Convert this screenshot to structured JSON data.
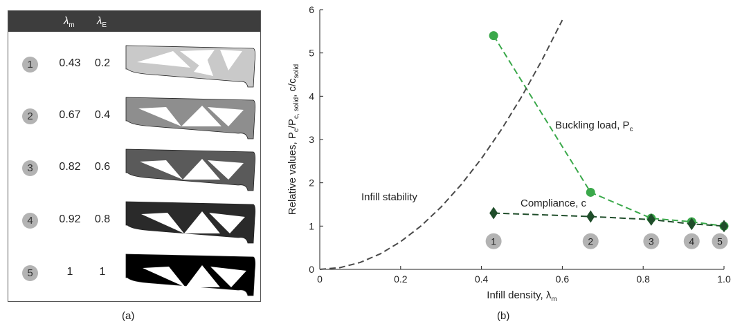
{
  "panel_a": {
    "header": {
      "lambda_m": "λ",
      "lambda_m_sub": "m",
      "lambda_e": "λ",
      "lambda_e_sub": "E"
    },
    "rows": [
      {
        "id": "1",
        "lambda_m": "0.43",
        "lambda_e": "0.2",
        "shade": "#c9c9c9"
      },
      {
        "id": "2",
        "lambda_m": "0.67",
        "lambda_e": "0.4",
        "shade": "#8e8e8e"
      },
      {
        "id": "3",
        "lambda_m": "0.82",
        "lambda_e": "0.6",
        "shade": "#5a5a5a"
      },
      {
        "id": "4",
        "lambda_m": "0.92",
        "lambda_e": "0.8",
        "shade": "#2a2a2a"
      },
      {
        "id": "5",
        "lambda_m": "1",
        "lambda_e": "1",
        "shade": "#000000"
      }
    ],
    "caption": "(a)"
  },
  "caption_b": "(b)",
  "chart_data": {
    "type": "line",
    "xlabel": "Infill density, λ",
    "xlabel_sub": "m",
    "ylabel_parts": [
      "Relative values, P",
      "c",
      "/P",
      "c, solid",
      ", c/c",
      "solid"
    ],
    "xlim": [
      0,
      1.0
    ],
    "ylim": [
      0,
      6
    ],
    "xticks": [
      "0",
      "0.2",
      "0.4",
      "0.6",
      "0.8",
      "1.0"
    ],
    "yticks": [
      "0",
      "1",
      "2",
      "3",
      "4",
      "5",
      "6"
    ],
    "grid": false,
    "series": [
      {
        "name": "Buckling load, P",
        "name_sub": "c",
        "color": "#3aa84a",
        "marker": "circle",
        "x": [
          0.43,
          0.67,
          0.82,
          0.92,
          1.0
        ],
        "y": [
          5.4,
          1.78,
          1.18,
          1.1,
          1.0
        ]
      },
      {
        "name": "Compliance, c",
        "color": "#1f4d2a",
        "marker": "diamond",
        "x": [
          0.43,
          0.67,
          0.82,
          0.92,
          1.0
        ],
        "y": [
          1.3,
          1.22,
          1.15,
          1.05,
          1.0
        ]
      },
      {
        "name": "Infill stability",
        "color": "#4a4a4a",
        "marker": "none",
        "x": [
          0,
          0.05,
          0.1,
          0.15,
          0.2,
          0.25,
          0.3,
          0.35,
          0.4,
          0.45,
          0.5,
          0.55,
          0.6
        ],
        "y": [
          0,
          0.04,
          0.16,
          0.36,
          0.64,
          1.0,
          1.44,
          1.96,
          2.56,
          3.24,
          4.0,
          4.84,
          5.76
        ]
      }
    ],
    "point_labels": [
      {
        "text": "1",
        "x": 0.43
      },
      {
        "text": "2",
        "x": 0.67
      },
      {
        "text": "3",
        "x": 0.82
      },
      {
        "text": "4",
        "x": 0.92
      },
      {
        "text": "5",
        "x": 1.0
      }
    ],
    "point_label_y": 0.65
  }
}
